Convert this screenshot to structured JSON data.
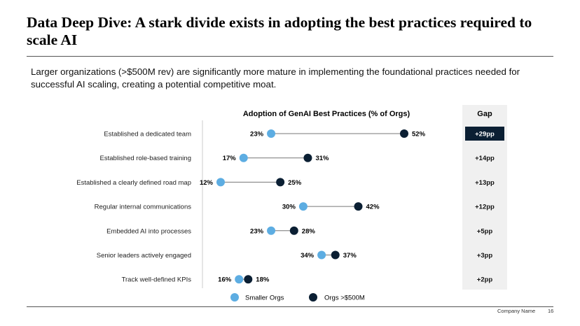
{
  "title": "Data Deep Dive: A stark divide exists in adopting the best practices required to scale AI",
  "subtitle": "Larger organizations (>$500M rev) are significantly more mature in implementing the foundational practices needed for successful AI scaling, creating a potential competitive moat.",
  "footer": {
    "company": "Company Name",
    "page": "16"
  },
  "colors": {
    "smaller": "#5DADE2",
    "large": "#0B1F33",
    "gap_bg": "#F0F0F0",
    "gap_highlight": "#0B1F33"
  },
  "chart_data": {
    "type": "dumbbell",
    "title": "Adoption of GenAI Best Practices (% of Orgs)",
    "gap_header": "Gap",
    "categories": [
      "Established a dedicated team",
      "Established role-based training",
      "Established a clearly defined road map",
      "Regular internal communications",
      "Embedded AI into processes",
      "Senior leaders actively engaged",
      "Track well-defined KPIs"
    ],
    "series": [
      {
        "name": "Smaller Orgs",
        "values": [
          23,
          17,
          12,
          30,
          23,
          34,
          16
        ],
        "labels": [
          "23%",
          "17%",
          "12%",
          "30%",
          "23%",
          "34%",
          "16%"
        ]
      },
      {
        "name": "Orgs >$500M",
        "values": [
          52,
          31,
          25,
          42,
          28,
          37,
          18
        ],
        "labels": [
          "52%",
          "31%",
          "25%",
          "42%",
          "28%",
          "37%",
          "18%"
        ]
      }
    ],
    "gap_labels": [
      "+29pp",
      "+14pp",
      "+13pp",
      "+12pp",
      "+5pp",
      "+3pp",
      "+2pp"
    ],
    "legend": "bottom"
  }
}
